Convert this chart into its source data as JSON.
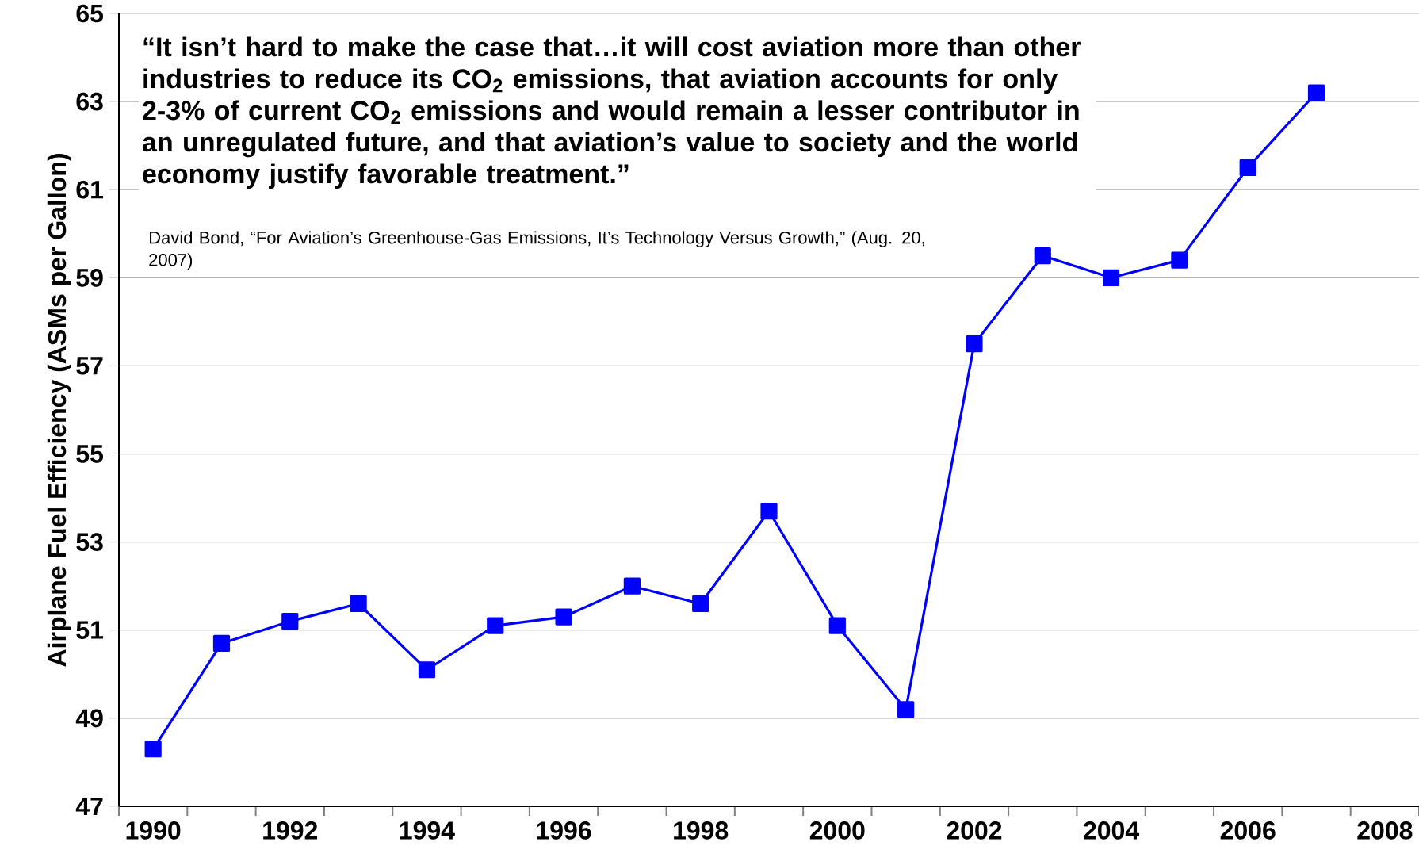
{
  "chart_data": {
    "type": "line",
    "ylabel": "Airplane Fuel Efficiency (ASMs per Gallon)",
    "categories": [
      "1990",
      null,
      "1992",
      null,
      "1994",
      null,
      "1996",
      null,
      "1998",
      null,
      "2000",
      null,
      "2002",
      null,
      "2004",
      null,
      "2006",
      null,
      "2008"
    ],
    "series": [
      {
        "color": "#0000ff",
        "values": [
          48.3,
          50.7,
          51.2,
          51.6,
          50.1,
          51.1,
          51.3,
          52.0,
          51.6,
          53.7,
          51.1,
          49.2,
          57.5,
          59.5,
          59.0,
          59.4,
          61.5,
          63.2,
          null
        ]
      }
    ],
    "ylim": [
      47,
      65
    ],
    "yticks": [
      47,
      49,
      51,
      53,
      55,
      57,
      59,
      61,
      63,
      65
    ],
    "grid": "y",
    "marker": "square",
    "line_style": "solid",
    "annotations": [
      "**“It isn’t hard to make the case that…it will cost aviation more than other industries to reduce its CO$_{2}$ emissions, that aviation accounts for only 2-3% of current CO$_{2}$ emissions and would remain a lesser contributor in an unregulated future, and that aviation’s value to society and the world economy justify favorable treatment.”**",
      "David Bond, “For Aviation’s Greenhouse-Gas Emissions, It’s Technology Versus Growth,” (Aug. 20, 2007)"
    ]
  }
}
